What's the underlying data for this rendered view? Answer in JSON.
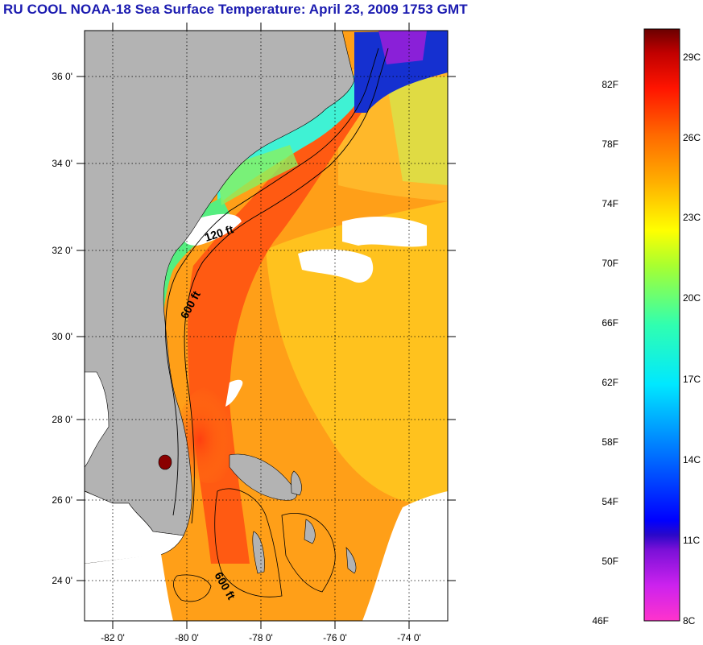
{
  "title": "RU COOL  NOAA-18  Sea Surface Temperature:  April 23, 2009 1753 GMT",
  "map": {
    "lat_labels": [
      "36 0'",
      "34 0'",
      "32 0'",
      "30 0'",
      "28 0'",
      "26 0'",
      "24 0'"
    ],
    "lon_labels": [
      "-82 0'",
      "-80 0'",
      "-78 0'",
      "-76 0'",
      "-74 0'"
    ],
    "contour_labels": {
      "c120": "120 ft",
      "c600a": "600 ft",
      "c600b": "600 ft"
    }
  },
  "colorbar": {
    "fahrenheit": [
      "82F",
      "78F",
      "74F",
      "70F",
      "66F",
      "62F",
      "58F",
      "54F",
      "50F",
      "46F"
    ],
    "celsius": [
      "29C",
      "26C",
      "23C",
      "20C",
      "17C",
      "14C",
      "11C",
      "8C"
    ]
  }
}
